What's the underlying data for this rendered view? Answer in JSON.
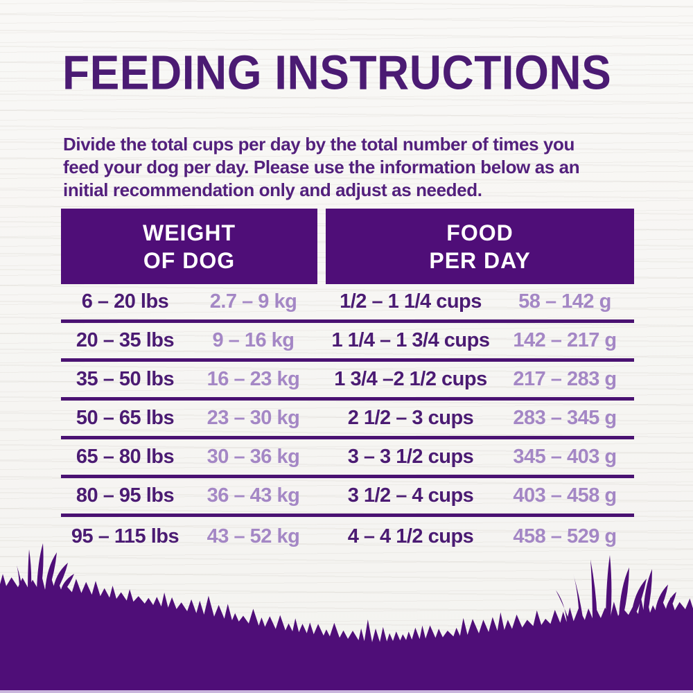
{
  "page": {
    "title": "FEEDING INSTRUCTIONS"
  },
  "intro": {
    "line1": "Divide the total cups per day by the total number of times you",
    "line2": "feed your dog per day. Please use the information below as an",
    "line3": "initial recommendation only and adjust as needed."
  },
  "table": {
    "headers": {
      "weight": {
        "line1": "WEIGHT",
        "line2": "OF DOG"
      },
      "food": {
        "line1": "FOOD",
        "line2": "PER DAY"
      }
    },
    "rows": [
      {
        "lbs": "6 – 20 lbs",
        "kg": "2.7 – 9 kg",
        "cups": "1/2 – 1 1/4 cups",
        "grams": "58 – 142 g"
      },
      {
        "lbs": "20 – 35 lbs",
        "kg": "9 – 16 kg",
        "cups": "1 1/4 – 1 3/4 cups",
        "grams": "142 – 217 g"
      },
      {
        "lbs": "35 – 50 lbs",
        "kg": "16 – 23 kg",
        "cups": "1 3/4 –2 1/2 cups",
        "grams": "217 – 283 g"
      },
      {
        "lbs": "50 – 65 lbs",
        "kg": "23 – 30 kg",
        "cups": "2 1/2 – 3 cups",
        "grams": "283 – 345 g"
      },
      {
        "lbs": "65 – 80 lbs",
        "kg": "30 – 36 kg",
        "cups": "3 – 3 1/2 cups",
        "grams": "345 – 403 g"
      },
      {
        "lbs": "80 – 95 lbs",
        "kg": "36 – 43 kg",
        "cups": "3 1/2 – 4 cups",
        "grams": "403 – 458 g"
      },
      {
        "lbs": "95 – 115 lbs",
        "kg": "43 – 52 kg",
        "cups": "4 – 4 1/2 cups",
        "grams": "458 – 529 g"
      }
    ]
  },
  "colors": {
    "brand_purple": "#4f0e78",
    "dark_text_purple": "#4b1b73",
    "light_text_purple": "#a487c5",
    "separator_purple": "#4a1272",
    "background": "#f7f6f3",
    "bottom_strip": "#c9b5dc"
  }
}
